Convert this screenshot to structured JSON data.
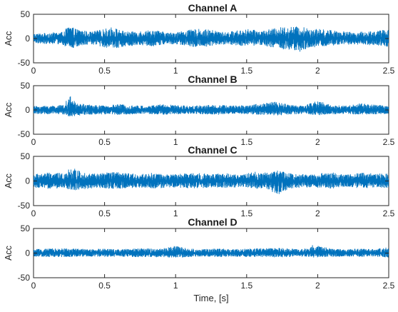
{
  "chart_data": [
    {
      "type": "line",
      "title": "Channel A",
      "ylabel": "Acc",
      "xlabel": "",
      "xlim": [
        0,
        2.5
      ],
      "ylim": [
        -50,
        50
      ],
      "xticks": [
        "0",
        "0.5",
        "1",
        "1.5",
        "2",
        "2.5"
      ],
      "yticks": [
        "50",
        "0",
        "-50"
      ],
      "grid": false,
      "series": [
        {
          "color": "#0072BD",
          "summary": "dense vibration signal centered at 0; peak amplitude approx ±30",
          "envelope": {
            "x": [
              0,
              0.1,
              0.2,
              0.25,
              0.3,
              0.4,
              0.5,
              0.55,
              0.65,
              0.75,
              0.85,
              0.95,
              1.05,
              1.15,
              1.25,
              1.35,
              1.5,
              1.6,
              1.75,
              1.85,
              2.0,
              2.1,
              2.25,
              2.4,
              2.5
            ],
            "max": [
              10,
              12,
              14,
              26,
              20,
              14,
              20,
              24,
              14,
              16,
              18,
              12,
              16,
              20,
              18,
              13,
              20,
              16,
              24,
              25,
              20,
              18,
              13,
              16,
              19
            ],
            "min": [
              -10,
              -11,
              -12,
              -22,
              -18,
              -12,
              -18,
              -22,
              -16,
              -14,
              -16,
              -11,
              -14,
              -18,
              -16,
              -12,
              -16,
              -14,
              -22,
              -30,
              -17,
              -15,
              -12,
              -14,
              -17
            ]
          }
        }
      ]
    },
    {
      "type": "line",
      "title": "Channel B",
      "ylabel": "Acc",
      "xlabel": "",
      "xlim": [
        0,
        2.5
      ],
      "ylim": [
        -50,
        50
      ],
      "xticks": [
        "0",
        "0.5",
        "1",
        "1.5",
        "2",
        "2.5"
      ],
      "yticks": [
        "50",
        "0",
        "-50"
      ],
      "grid": false,
      "series": [
        {
          "color": "#0072BD",
          "summary": "lower amplitude vibration signal centered at 0; peak approx +30",
          "envelope": {
            "x": [
              0,
              0.1,
              0.2,
              0.26,
              0.3,
              0.4,
              0.5,
              0.6,
              0.7,
              0.8,
              0.9,
              1.0,
              1.1,
              1.2,
              1.3,
              1.4,
              1.5,
              1.6,
              1.7,
              1.8,
              1.9,
              2.0,
              2.1,
              2.2,
              2.3,
              2.4,
              2.5
            ],
            "max": [
              8,
              9,
              10,
              28,
              14,
              11,
              9,
              12,
              10,
              8,
              13,
              10,
              9,
              10,
              11,
              9,
              10,
              14,
              17,
              11,
              9,
              20,
              10,
              9,
              14,
              11,
              9
            ],
            "min": [
              -8,
              -9,
              -9,
              -14,
              -12,
              -10,
              -9,
              -10,
              -9,
              -8,
              -10,
              -9,
              -8,
              -9,
              -10,
              -8,
              -9,
              -10,
              -12,
              -10,
              -8,
              -11,
              -9,
              -8,
              -10,
              -9,
              -8
            ]
          }
        }
      ]
    },
    {
      "type": "line",
      "title": "Channel C",
      "ylabel": "Acc",
      "xlabel": "",
      "xlim": [
        0,
        2.5
      ],
      "ylim": [
        -50,
        50
      ],
      "xticks": [
        "0",
        "0.5",
        "1",
        "1.5",
        "2",
        "2.5"
      ],
      "yticks": [
        "50",
        "0",
        "-50"
      ],
      "grid": false,
      "series": [
        {
          "color": "#0072BD",
          "summary": "vibration signal centered at 0; peaks approx +27 and -30",
          "envelope": {
            "x": [
              0,
              0.1,
              0.2,
              0.27,
              0.35,
              0.45,
              0.55,
              0.65,
              0.75,
              0.85,
              0.95,
              1.05,
              1.15,
              1.25,
              1.35,
              1.45,
              1.55,
              1.65,
              1.72,
              1.8,
              1.9,
              2.0,
              2.1,
              2.2,
              2.3,
              2.4,
              2.5
            ],
            "max": [
              14,
              17,
              16,
              27,
              18,
              15,
              19,
              16,
              14,
              17,
              13,
              15,
              17,
              14,
              16,
              12,
              19,
              17,
              22,
              16,
              14,
              15,
              18,
              13,
              17,
              15,
              16
            ],
            "min": [
              -14,
              -16,
              -15,
              -20,
              -17,
              -14,
              -16,
              -15,
              -14,
              -16,
              -13,
              -14,
              -16,
              -13,
              -15,
              -12,
              -16,
              -17,
              -30,
              -16,
              -13,
              -14,
              -16,
              -12,
              -15,
              -14,
              -15
            ]
          }
        }
      ]
    },
    {
      "type": "line",
      "title": "Channel D",
      "ylabel": "Acc",
      "xlabel": "Time, [s]",
      "xlim": [
        0,
        2.5
      ],
      "ylim": [
        -50,
        50
      ],
      "xticks": [
        "0",
        "0.5",
        "1",
        "1.5",
        "2",
        "2.5"
      ],
      "yticks": [
        "50",
        "0",
        "-50"
      ],
      "grid": false,
      "series": [
        {
          "color": "#0072BD",
          "summary": "low amplitude vibration signal centered at 0; occasional spikes up to approx +18",
          "envelope": {
            "x": [
              0,
              0.1,
              0.2,
              0.3,
              0.4,
              0.5,
              0.6,
              0.7,
              0.8,
              0.9,
              1.0,
              1.1,
              1.2,
              1.3,
              1.4,
              1.5,
              1.6,
              1.7,
              1.8,
              1.9,
              1.97,
              2.1,
              2.2,
              2.3,
              2.4,
              2.5
            ],
            "max": [
              8,
              9,
              10,
              9,
              8,
              9,
              8,
              9,
              10,
              9,
              15,
              9,
              8,
              10,
              8,
              9,
              10,
              11,
              9,
              8,
              17,
              9,
              8,
              9,
              8,
              12
            ],
            "min": [
              -7,
              -8,
              -8,
              -8,
              -7,
              -8,
              -7,
              -8,
              -9,
              -8,
              -10,
              -8,
              -7,
              -8,
              -7,
              -8,
              -8,
              -9,
              -8,
              -7,
              -9,
              -8,
              -7,
              -8,
              -7,
              -9
            ]
          }
        }
      ]
    }
  ]
}
